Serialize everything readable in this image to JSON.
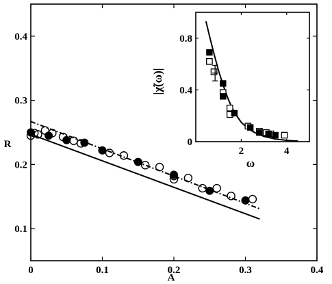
{
  "chart_data": [
    {
      "type": "scatter",
      "xlabel": "A",
      "ylabel": "R",
      "xlim": [
        0,
        0.4
      ],
      "ylim": [
        0.05,
        0.45
      ],
      "xticks": [
        "0",
        "0.1",
        "0.2",
        "0.3",
        "0.4"
      ],
      "yticks": [
        "0.1",
        "0.2",
        "0.3",
        "0.4"
      ],
      "xtick_values": [
        0,
        0.1,
        0.2,
        0.3,
        0.4
      ],
      "ytick_values": [
        0.1,
        0.2,
        0.3,
        0.4
      ],
      "grid": false,
      "series": [
        {
          "marker": "open-circle",
          "color": "#000000",
          "points": [
            [
              0,
              0.245
            ],
            [
              0.005,
              0.249
            ],
            [
              0.01,
              0.247
            ],
            [
              0.02,
              0.253
            ],
            [
              0.03,
              0.249
            ],
            [
              0.045,
              0.243
            ],
            [
              0.06,
              0.237
            ],
            [
              0.07,
              0.233
            ],
            [
              0.11,
              0.218
            ],
            [
              0.13,
              0.214
            ],
            [
              0.16,
              0.199
            ],
            [
              0.18,
              0.196
            ],
            [
              0.2,
              0.177
            ],
            [
              0.2,
              0.182
            ],
            [
              0.22,
              0.179
            ],
            [
              0.24,
              0.163
            ],
            [
              0.26,
              0.163
            ],
            [
              0.28,
              0.151
            ],
            [
              0.31,
              0.146
            ]
          ]
        },
        {
          "marker": "filled-circle",
          "color": "#000000",
          "points": [
            [
              0,
              0.25
            ],
            [
              0.025,
              0.245
            ],
            [
              0.05,
              0.238
            ],
            [
              0.075,
              0.234
            ],
            [
              0.1,
              0.222
            ],
            [
              0.15,
              0.204
            ],
            [
              0.2,
              0.184
            ],
            [
              0.25,
              0.159
            ],
            [
              0.3,
              0.144
            ]
          ]
        },
        {
          "line": "solid",
          "color": "#000000",
          "points": [
            [
              0,
              0.247
            ],
            [
              0.32,
              0.115
            ]
          ]
        },
        {
          "line": "dash-dot",
          "color": "#000000",
          "points": [
            [
              0,
              0.267
            ],
            [
              0.32,
              0.131
            ]
          ]
        }
      ]
    },
    {
      "type": "scatter",
      "inset": true,
      "xlabel": "ω",
      "ylabel": "|χ̃(ω)|",
      "xlim": [
        0,
        5
      ],
      "ylim": [
        0,
        1.0
      ],
      "xticks": [
        "2",
        "4"
      ],
      "yticks": [
        "0",
        "0.4",
        "0.8"
      ],
      "xtick_values": [
        2,
        4
      ],
      "ytick_values": [
        0,
        0.4,
        0.8
      ],
      "grid": false,
      "series": [
        {
          "marker": "open-square",
          "color": "#000000",
          "points": [
            [
              0.6,
              0.62
            ],
            [
              0.8,
              0.54
            ],
            [
              1.2,
              0.38
            ],
            [
              1.5,
              0.26
            ],
            [
              1.5,
              0.21
            ],
            [
              2.3,
              0.12
            ],
            [
              2.8,
              0.08
            ],
            [
              3.1,
              0.07
            ],
            [
              3.3,
              0.06
            ],
            [
              3.9,
              0.05
            ]
          ]
        },
        {
          "marker": "filled-square",
          "color": "#000000",
          "points": [
            [
              0.6,
              0.69
            ],
            [
              1.2,
              0.45
            ],
            [
              1.2,
              0.35
            ],
            [
              1.7,
              0.22
            ],
            [
              2.4,
              0.11
            ],
            [
              2.8,
              0.07
            ],
            [
              3.2,
              0.06
            ],
            [
              3.5,
              0.05
            ]
          ]
        },
        {
          "marker": "errorbar",
          "color": "#000000",
          "points": [
            [
              0.85,
              0.53,
              0.06
            ]
          ]
        },
        {
          "line": "solid",
          "color": "#000000",
          "points": [
            [
              0.45,
              0.93
            ],
            [
              0.6,
              0.82
            ],
            [
              0.8,
              0.68
            ],
            [
              1.0,
              0.55
            ],
            [
              1.2,
              0.44
            ],
            [
              1.4,
              0.34
            ],
            [
              1.6,
              0.26
            ],
            [
              1.8,
              0.2
            ],
            [
              2.0,
              0.15
            ],
            [
              2.3,
              0.1
            ],
            [
              2.6,
              0.07
            ],
            [
              3.0,
              0.04
            ],
            [
              3.5,
              0.02
            ],
            [
              4.0,
              0.01
            ],
            [
              4.5,
              0.005
            ]
          ]
        }
      ]
    }
  ]
}
